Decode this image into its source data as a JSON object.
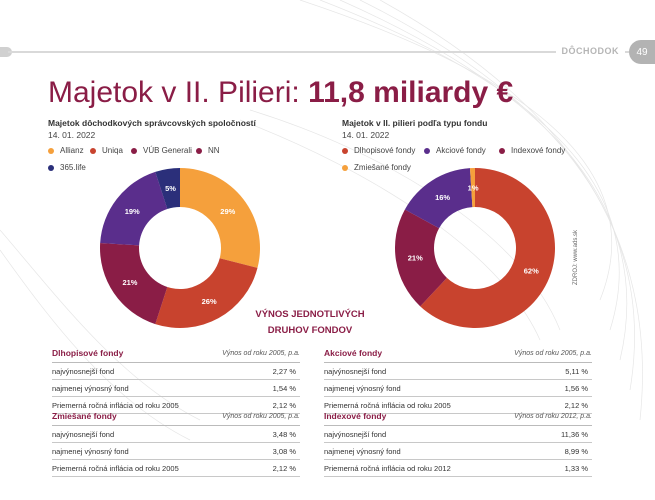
{
  "header": {
    "section": "DÔCHODOK",
    "page": "49"
  },
  "title": {
    "prefix": "Majetok v II. Pilieri: ",
    "value": "11,8 miliardy €"
  },
  "chart_left": {
    "title": "Majetok dôchodkových správcovských spoločností",
    "date": "14. 01. 2022",
    "legend": [
      {
        "name": "Allianz",
        "color": "#f5a03c"
      },
      {
        "name": "Uniqa",
        "color": "#c8432e"
      },
      {
        "name": "VÚB Generali",
        "color": "#8a1d46"
      },
      {
        "name": "NN",
        "color": "#8a1d46"
      },
      {
        "name": "365.life",
        "color": "#2b2f7a"
      }
    ]
  },
  "chart_right": {
    "title": "Majetok v II. pilieri podľa typu fondu",
    "date": "14. 01. 2022",
    "legend": [
      {
        "name": "Dlhopisové fondy",
        "color": "#c8432e"
      },
      {
        "name": "Akciové fondy",
        "color": "#5a2e8c"
      },
      {
        "name": "Indexové fondy",
        "color": "#8a1d46"
      },
      {
        "name": "Zmiešané fondy",
        "color": "#f5a03c"
      }
    ]
  },
  "chart_data": [
    {
      "type": "pie",
      "title": "Majetok dôchodkových správcovských spoločností",
      "categories": [
        "Allianz",
        "Uniqa",
        "NN",
        "VÚB Generali",
        "365.life"
      ],
      "values": [
        29,
        26,
        21,
        19,
        5
      ],
      "labels": [
        "29%",
        "26%",
        "21%",
        "19%",
        "5%"
      ],
      "colors": [
        "#f5a03c",
        "#c8432e",
        "#8a1d46",
        "#5a2e8c",
        "#2b2f7a"
      ]
    },
    {
      "type": "pie",
      "title": "Majetok v II. pilieri podľa typu fondu",
      "categories": [
        "Dlhopisové fondy",
        "Indexové fondy",
        "Akciové fondy",
        "Zmiešané fondy"
      ],
      "values": [
        62,
        21,
        16,
        1
      ],
      "labels": [
        "62%",
        "21%",
        "16%",
        "1%"
      ],
      "colors": [
        "#c8432e",
        "#8a1d46",
        "#5a2e8c",
        "#f5a03c"
      ]
    }
  ],
  "credit": "ZDROJ: www.ads.sk",
  "heading": {
    "line1": "VÝNOS JEDNOTLIVÝCH",
    "line2": "DRUHOV FONDOV"
  },
  "tables": {
    "dlhopisove": {
      "title": "Dlhopisové fondy",
      "sub": "Výnos od roku 2005, p.a.",
      "rows": [
        {
          "label": "najvýnosnejší fond",
          "value": "2,27 %"
        },
        {
          "label": "najmenej výnosný fond",
          "value": "1,54 %"
        },
        {
          "label": "Priemerná ročná inflácia od roku 2005",
          "value": "2,12 %"
        }
      ]
    },
    "akciove": {
      "title": "Akciové fondy",
      "sub": "Výnos od roku 2005, p.a.",
      "rows": [
        {
          "label": "najvýnosnejší fond",
          "value": "5,11 %"
        },
        {
          "label": "najmenej výnosný fond",
          "value": "1,56 %"
        },
        {
          "label": "Priemerná ročná inflácia od roku 2005",
          "value": "2,12 %"
        }
      ]
    },
    "zmiesane": {
      "title": "Zmiešané fondy",
      "sub": "Výnos od roku 2005, p.a.",
      "rows": [
        {
          "label": "najvýnosnejší fond",
          "value": "3,48 %"
        },
        {
          "label": "najmenej výnosný fond",
          "value": "3,08 %"
        },
        {
          "label": "Priemerná ročná inflácia od roku 2005",
          "value": "2,12 %"
        }
      ]
    },
    "indexove": {
      "title": "Indexové fondy",
      "sub": "Výnos od roku 2012, p.a.",
      "rows": [
        {
          "label": "najvýnosnejší fond",
          "value": "11,36 %"
        },
        {
          "label": "najmenej výnosný fond",
          "value": "8,99 %"
        },
        {
          "label": "Priemerná ročná inflácia od roku 2012",
          "value": "1,33 %"
        }
      ]
    }
  }
}
